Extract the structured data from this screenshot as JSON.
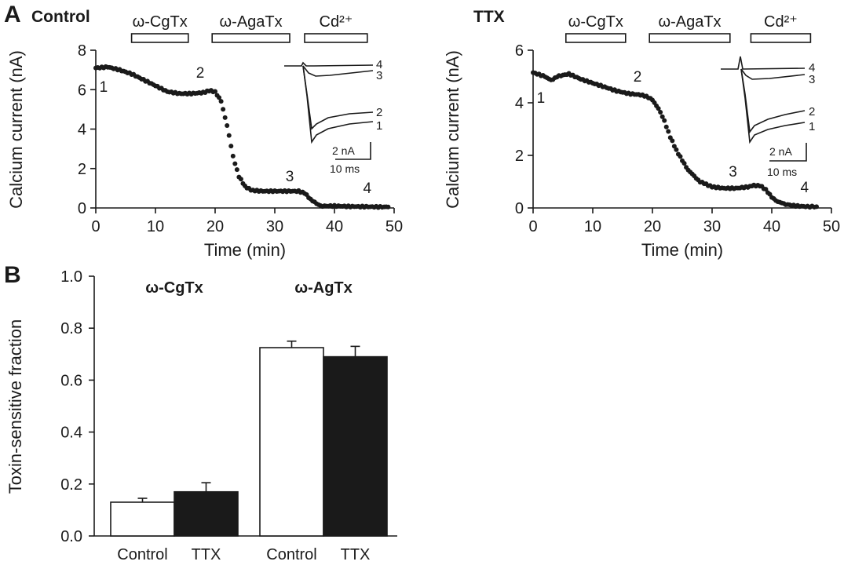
{
  "chart_data": [
    {
      "panel": "A",
      "condition": "Control",
      "type": "scatter",
      "xlabel": "Time (min)",
      "ylabel": "Calcium current (nA)",
      "xlim": [
        0,
        50
      ],
      "ylim": [
        0,
        8
      ],
      "xticks": [
        "0",
        "10",
        "20",
        "30",
        "40",
        "50"
      ],
      "yticks": [
        "0",
        "2",
        "4",
        "6",
        "8"
      ],
      "drug_bars": [
        {
          "label": "ω-CgTx",
          "start": 6,
          "end": 15.5
        },
        {
          "label": "ω-AgaTx",
          "start": 19.5,
          "end": 32.5
        },
        {
          "label": "Cd²⁺",
          "start": 35,
          "end": 45.5
        }
      ],
      "points": [
        [
          0,
          7.1
        ],
        [
          2,
          7.15
        ],
        [
          4,
          7.0
        ],
        [
          6,
          6.8
        ],
        [
          8,
          6.5
        ],
        [
          10,
          6.2
        ],
        [
          12,
          5.9
        ],
        [
          14,
          5.8
        ],
        [
          16,
          5.8
        ],
        [
          18,
          5.85
        ],
        [
          19,
          5.95
        ],
        [
          20,
          5.9
        ],
        [
          21,
          5.4
        ],
        [
          22,
          4.2
        ],
        [
          23,
          2.6
        ],
        [
          24,
          1.6
        ],
        [
          25,
          1.1
        ],
        [
          26,
          0.9
        ],
        [
          28,
          0.85
        ],
        [
          30,
          0.85
        ],
        [
          32,
          0.85
        ],
        [
          34,
          0.85
        ],
        [
          35,
          0.75
        ],
        [
          36,
          0.45
        ],
        [
          37,
          0.2
        ],
        [
          38,
          0.1
        ],
        [
          40,
          0.1
        ],
        [
          42,
          0.08
        ],
        [
          44,
          0.07
        ],
        [
          46,
          0.06
        ],
        [
          48,
          0.05
        ],
        [
          49,
          0.05
        ]
      ],
      "annotations": [
        {
          "text": "1",
          "x": 1.3,
          "y": 5.9
        },
        {
          "text": "2",
          "x": 17.5,
          "y": 6.6
        },
        {
          "text": "3",
          "x": 32.5,
          "y": 1.35
        },
        {
          "text": "4",
          "x": 45.5,
          "y": 0.75
        }
      ],
      "inset": {
        "trace_labels": [
          "4",
          "3",
          "2",
          "1"
        ],
        "scale_current": "2 nA",
        "scale_time": "10 ms"
      }
    },
    {
      "panel": "",
      "condition": "TTX",
      "type": "scatter",
      "xlabel": "Time (min)",
      "ylabel": "Calcium current (nA)",
      "xlim": [
        0,
        50
      ],
      "ylim": [
        0,
        6
      ],
      "xticks": [
        "0",
        "10",
        "20",
        "30",
        "40",
        "50"
      ],
      "yticks": [
        "0",
        "2",
        "4",
        "6"
      ],
      "drug_bars": [
        {
          "label": "ω-CgTx",
          "start": 5.5,
          "end": 15.5
        },
        {
          "label": "ω-AgaTx",
          "start": 19.5,
          "end": 33
        },
        {
          "label": "Cd²⁺",
          "start": 36.5,
          "end": 46.5
        }
      ],
      "points": [
        [
          0,
          5.15
        ],
        [
          2,
          5.0
        ],
        [
          3,
          4.85
        ],
        [
          4,
          5.0
        ],
        [
          6,
          5.1
        ],
        [
          8,
          4.9
        ],
        [
          10,
          4.75
        ],
        [
          12,
          4.6
        ],
        [
          14,
          4.45
        ],
        [
          16,
          4.35
        ],
        [
          18,
          4.3
        ],
        [
          19,
          4.25
        ],
        [
          20,
          4.1
        ],
        [
          21,
          3.8
        ],
        [
          22,
          3.3
        ],
        [
          23,
          2.7
        ],
        [
          24,
          2.2
        ],
        [
          25,
          1.8
        ],
        [
          26,
          1.45
        ],
        [
          27,
          1.2
        ],
        [
          28,
          1.0
        ],
        [
          29,
          0.9
        ],
        [
          30,
          0.8
        ],
        [
          32,
          0.75
        ],
        [
          34,
          0.75
        ],
        [
          36,
          0.8
        ],
        [
          37,
          0.85
        ],
        [
          38,
          0.85
        ],
        [
          39,
          0.7
        ],
        [
          40,
          0.4
        ],
        [
          41,
          0.25
        ],
        [
          42,
          0.15
        ],
        [
          44,
          0.08
        ],
        [
          46,
          0.05
        ],
        [
          47.5,
          0.05
        ]
      ],
      "annotations": [
        {
          "text": "1",
          "x": 1.3,
          "y": 4.0
        },
        {
          "text": "2",
          "x": 17.5,
          "y": 4.8
        },
        {
          "text": "3",
          "x": 33.5,
          "y": 1.2
        },
        {
          "text": "4",
          "x": 45.5,
          "y": 0.6
        }
      ],
      "inset": {
        "trace_labels": [
          "4",
          "3",
          "2",
          "1"
        ],
        "scale_current": "2 nA",
        "scale_time": "10 ms"
      }
    },
    {
      "panel": "B",
      "type": "bar",
      "ylabel": "Toxin-sensitive fraction",
      "ylim": [
        0,
        1.0
      ],
      "yticks": [
        "0.0",
        "0.2",
        "0.4",
        "0.6",
        "0.8",
        "1.0"
      ],
      "groups": [
        {
          "name": "ω-CgTx",
          "bars": [
            {
              "label": "Control",
              "value": 0.13,
              "error": 0.015,
              "fill": "#ffffff"
            },
            {
              "label": "TTX",
              "value": 0.17,
              "error": 0.035,
              "fill": "#1a1a1a"
            }
          ]
        },
        {
          "name": "ω-AgTx",
          "bars": [
            {
              "label": "Control",
              "value": 0.725,
              "error": 0.025,
              "fill": "#ffffff"
            },
            {
              "label": "TTX",
              "value": 0.69,
              "error": 0.04,
              "fill": "#1a1a1a"
            }
          ]
        }
      ]
    }
  ]
}
